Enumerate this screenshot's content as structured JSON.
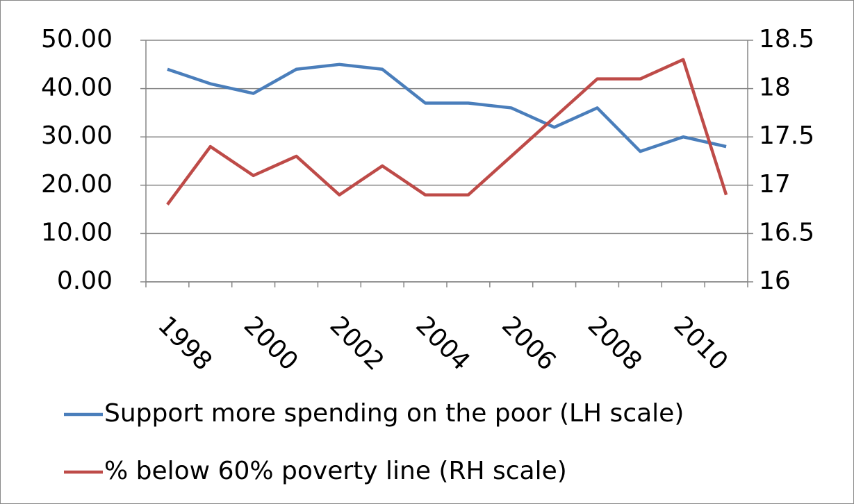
{
  "chart_data": {
    "type": "line",
    "categories": [
      "1998",
      null,
      "2000",
      null,
      "2002",
      null,
      "2004",
      null,
      "2006",
      null,
      "2008",
      null,
      "2010",
      null
    ],
    "series": [
      {
        "name": "Support more spending on the poor (LH scale)",
        "color": "#4a7ebb",
        "axis": "y",
        "values": [
          44,
          41,
          39,
          44,
          45,
          44,
          37,
          37,
          36,
          32,
          36,
          27,
          30,
          28
        ]
      },
      {
        "name": "% below 60% poverty line (RH scale)",
        "color": "#be4b48",
        "axis": "y2",
        "values": [
          16.8,
          17.4,
          17.1,
          17.3,
          16.9,
          17.2,
          16.9,
          16.9,
          17.3,
          17.7,
          18.1,
          18.1,
          18.3,
          16.9
        ]
      }
    ],
    "ylim": [
      0,
      50
    ],
    "yticks": [
      {
        "value": 0,
        "label": "0.00"
      },
      {
        "value": 10,
        "label": "10.00"
      },
      {
        "value": 20,
        "label": "20.00"
      },
      {
        "value": 30,
        "label": "30.00"
      },
      {
        "value": 40,
        "label": "40.00"
      },
      {
        "value": 50,
        "label": "50.00"
      }
    ],
    "y2lim": [
      16,
      18.5
    ],
    "y2ticks": [
      16,
      16.5,
      17,
      17.5,
      18,
      18.5
    ],
    "grid": true,
    "legend": "bottom"
  }
}
